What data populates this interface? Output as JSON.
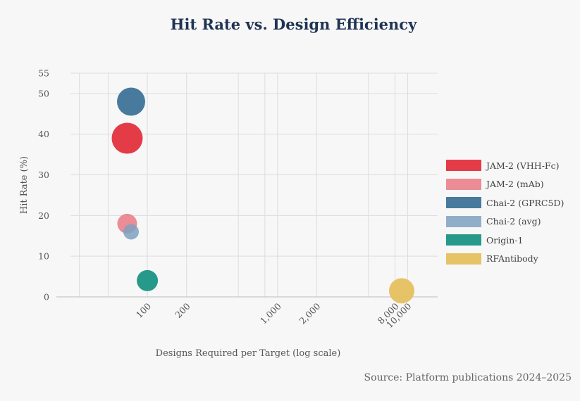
{
  "chart_data": {
    "type": "scatter",
    "title": "Hit Rate vs. Design Efficiency",
    "xlabel": "Designs Required per Target (log scale)",
    "ylabel": "Hit Rate (%)",
    "xscale": "log",
    "xlim": [
      20,
      17000
    ],
    "ylim": [
      -2,
      55
    ],
    "x_tick_values": [
      100,
      200,
      1000,
      2000,
      8000,
      10000
    ],
    "x_tick_labels": [
      "100",
      "200",
      "1,000",
      "2,000",
      "8,000",
      "10,000"
    ],
    "y_tick_values": [
      0,
      10,
      20,
      30,
      40,
      50,
      55
    ],
    "y_tick_labels": [
      "0",
      "10",
      "20",
      "30",
      "40",
      "50",
      "55"
    ],
    "grid": true,
    "legend_position": "right",
    "series": [
      {
        "name": "JAM-2 (VHH-Fc)",
        "color": "#e43c47",
        "opacity": 1.0,
        "x": 70,
        "y": 39,
        "size": 22
      },
      {
        "name": "JAM-2 (mAb)",
        "color": "#ea8088",
        "opacity": 0.9,
        "x": 70,
        "y": 18,
        "size": 14
      },
      {
        "name": "Chai-2 (GPRC5D)",
        "color": "#3d7398",
        "opacity": 0.95,
        "x": 75,
        "y": 48,
        "size": 20
      },
      {
        "name": "Chai-2 (avg)",
        "color": "#7fa1bf",
        "opacity": 0.85,
        "x": 75,
        "y": 16,
        "size": 11
      },
      {
        "name": "Origin-1",
        "color": "#27998a",
        "opacity": 1.0,
        "x": 100,
        "y": 4,
        "size": 15
      },
      {
        "name": "RFAntibody",
        "color": "#e6c05f",
        "opacity": 0.95,
        "x": 9000,
        "y": 1.5,
        "size": 18
      }
    ]
  },
  "source": "Source: Platform publications 2024–2025"
}
